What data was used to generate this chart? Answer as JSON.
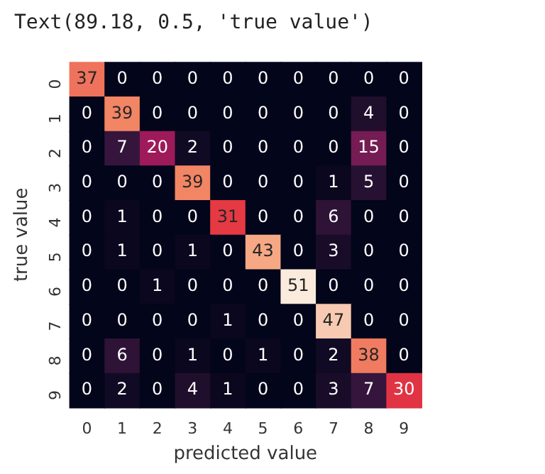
{
  "chart_data": {
    "type": "heatmap",
    "xlabel": "predicted value",
    "ylabel": "true value",
    "annotations": [
      "Text(89.18, 0.5, 'true value')"
    ],
    "categories": [
      "0",
      "1",
      "2",
      "3",
      "4",
      "5",
      "6",
      "7",
      "8",
      "9"
    ],
    "y_categories": [
      "0",
      "1",
      "2",
      "3",
      "4",
      "5",
      "6",
      "7",
      "8",
      "9"
    ],
    "cells": [
      [
        37,
        0,
        0,
        0,
        0,
        0,
        0,
        0,
        0,
        0
      ],
      [
        0,
        39,
        0,
        0,
        0,
        0,
        0,
        0,
        4,
        0
      ],
      [
        0,
        7,
        20,
        2,
        0,
        0,
        0,
        0,
        15,
        0
      ],
      [
        0,
        0,
        0,
        39,
        0,
        0,
        0,
        1,
        5,
        0
      ],
      [
        0,
        1,
        0,
        0,
        31,
        0,
        0,
        6,
        0,
        0
      ],
      [
        0,
        1,
        0,
        1,
        0,
        43,
        0,
        3,
        0,
        0
      ],
      [
        0,
        0,
        1,
        0,
        0,
        0,
        51,
        0,
        0,
        0
      ],
      [
        0,
        0,
        0,
        0,
        1,
        0,
        0,
        47,
        0,
        0
      ],
      [
        0,
        6,
        0,
        1,
        0,
        1,
        0,
        2,
        38,
        0
      ],
      [
        0,
        2,
        0,
        4,
        1,
        0,
        0,
        3,
        7,
        30
      ]
    ],
    "data_labels": true,
    "legend": false
  }
}
